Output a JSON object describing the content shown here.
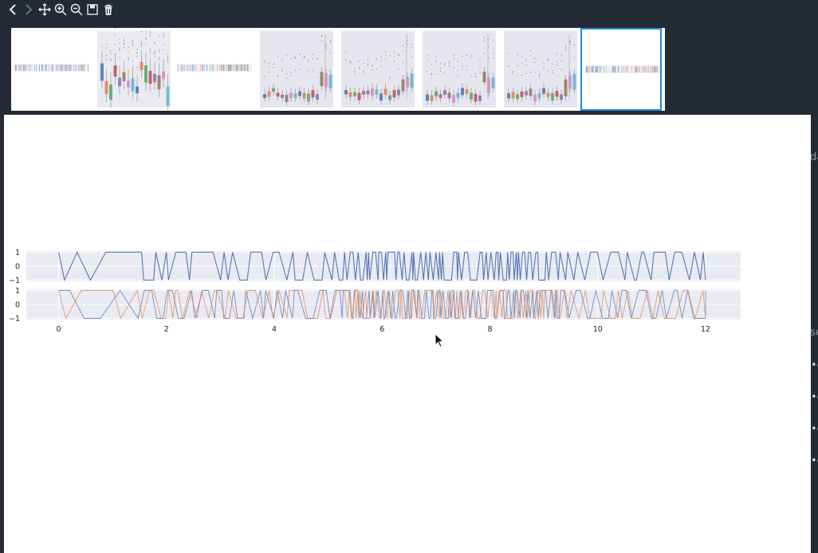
{
  "toolbar": {
    "buttons": [
      {
        "name": "back-button",
        "icon": "chevron-left-icon"
      },
      {
        "name": "forward-button",
        "icon": "chevron-right-icon"
      },
      {
        "name": "pan-button",
        "icon": "move-arrows-icon"
      },
      {
        "name": "zoom-in-button",
        "icon": "zoom-in-icon"
      },
      {
        "name": "zoom-out-button",
        "icon": "zoom-out-icon"
      },
      {
        "name": "save-button",
        "icon": "save-icon"
      },
      {
        "name": "delete-button",
        "icon": "trash-icon"
      }
    ]
  },
  "thumbnails": {
    "count": 8,
    "selected_index": 7,
    "kinds": [
      "strip",
      "boxplot-color",
      "strip",
      "boxplot-gray",
      "boxplot-gray",
      "boxplot-gray",
      "boxplot-gray",
      "strip"
    ]
  },
  "right_edge": {
    "text1": "da",
    "text2": "se",
    "dots": [
      "•e",
      "•e",
      "•e",
      "•e"
    ]
  },
  "chart_data": {
    "type": "line",
    "panels": [
      {
        "name": "top",
        "ylim": [
          -1,
          1
        ],
        "yticks": [
          "1",
          "0",
          "−1"
        ],
        "series": [
          {
            "color": "#4c72b0"
          }
        ]
      },
      {
        "name": "bottom",
        "ylim": [
          -1,
          1
        ],
        "yticks": [
          "1",
          "0",
          "−1"
        ],
        "series": [
          {
            "color": "#4c72b0"
          },
          {
            "color": "#dd8452"
          }
        ]
      }
    ],
    "xlim": [
      -0.6,
      12.65
    ],
    "xticks": [
      "0",
      "2",
      "4",
      "6",
      "8",
      "10",
      "12"
    ],
    "xtick_values": [
      0,
      2,
      4,
      6,
      8,
      10,
      12
    ],
    "grid": true,
    "background": "#eaeaf2"
  }
}
